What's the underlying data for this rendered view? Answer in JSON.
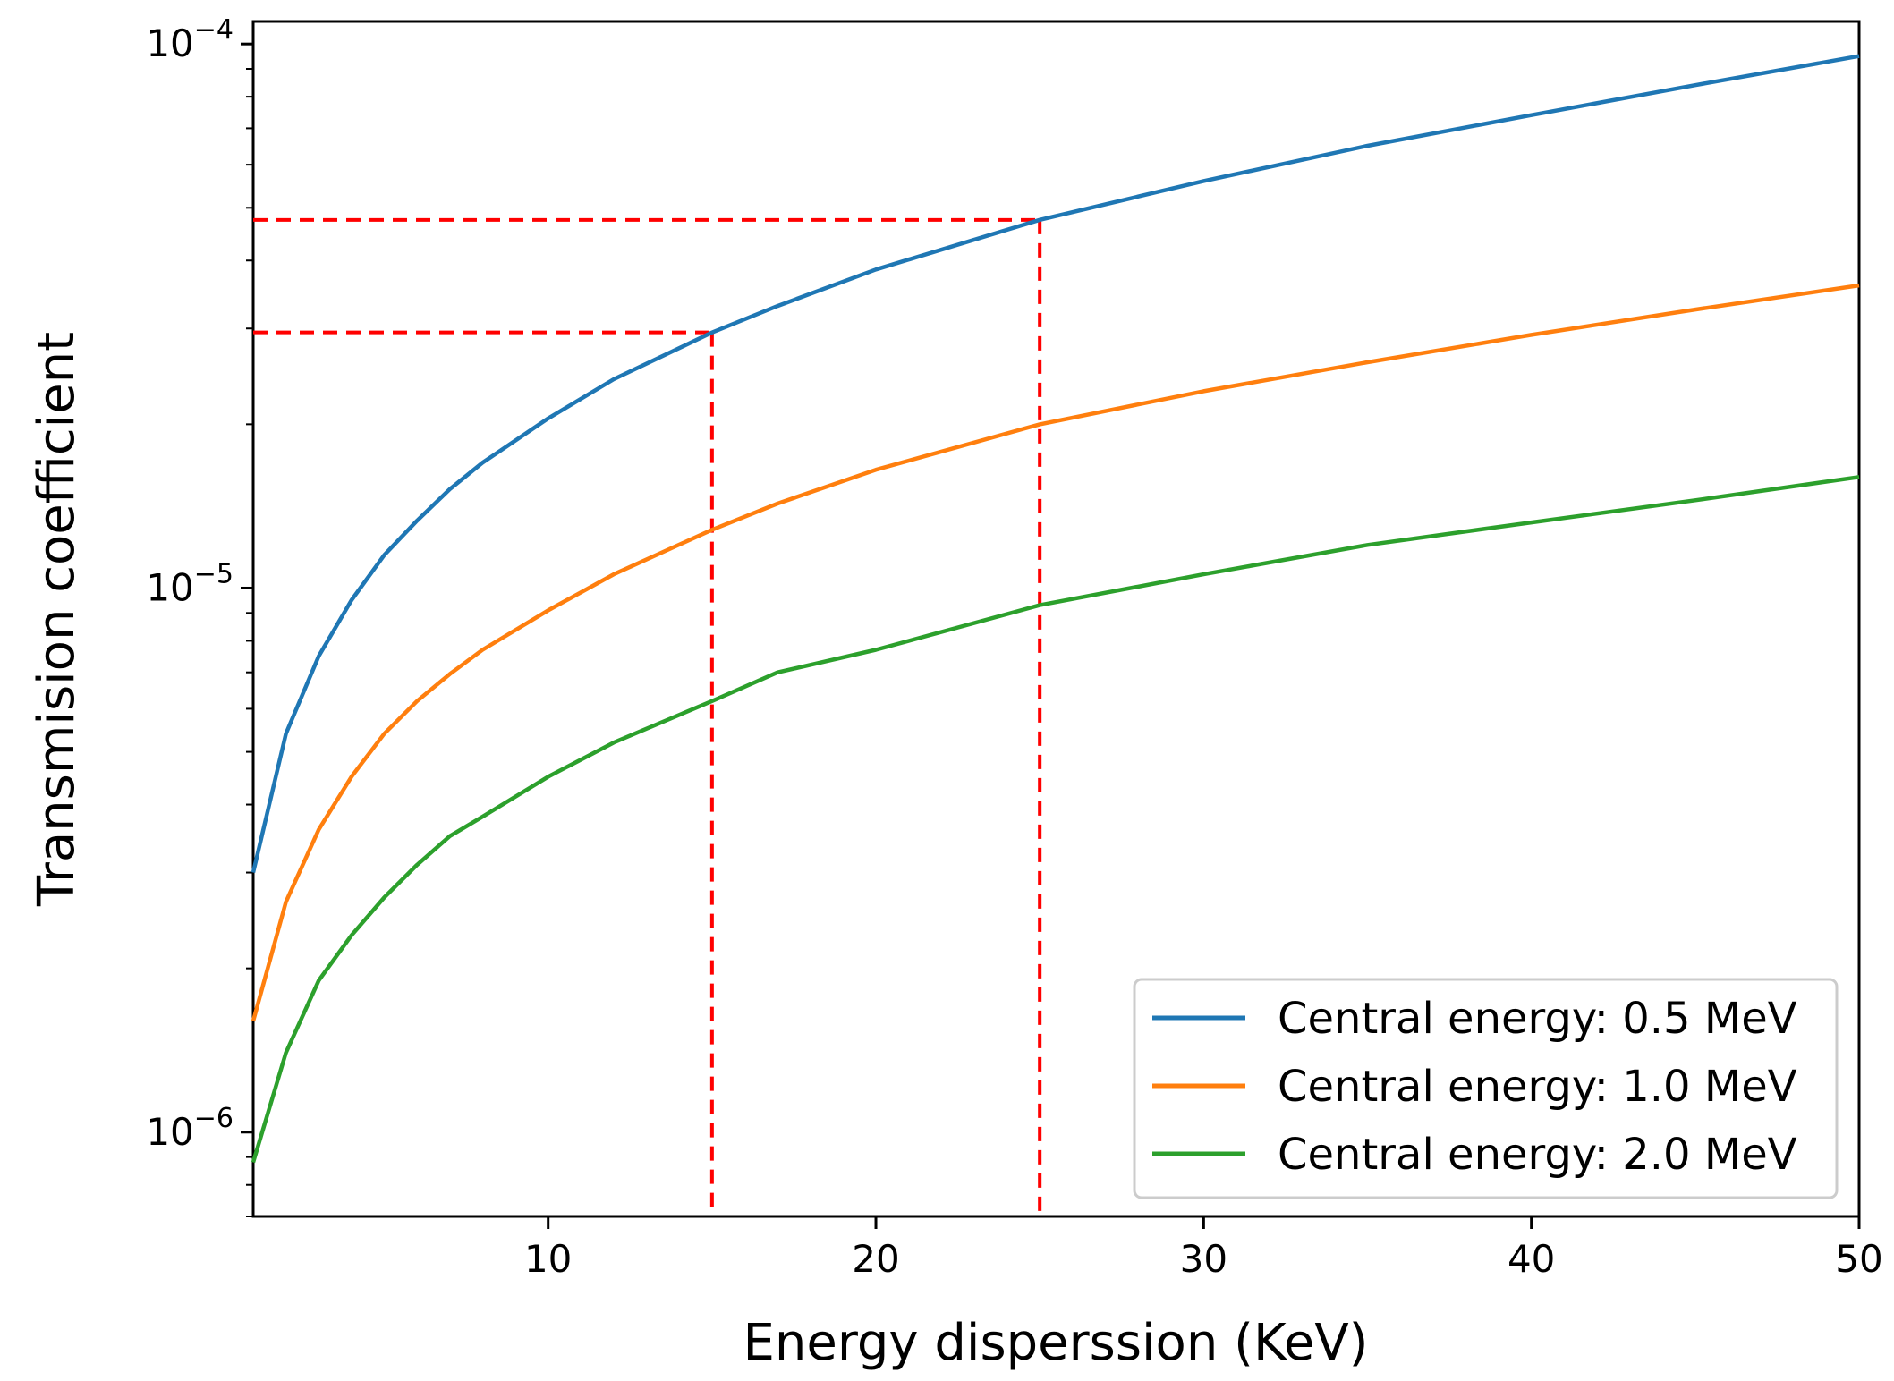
{
  "chart_data": {
    "type": "line",
    "xlabel": "Energy disperssion (KeV)",
    "ylabel": "Transmision coefficient",
    "xlim": [
      1,
      50
    ],
    "ylim": [
      7e-07,
      0.00011
    ],
    "yscale": "log",
    "legend_position": "bottom-right",
    "x_ticks": [
      10,
      20,
      30,
      40,
      50
    ],
    "y_ticks": [
      {
        "value": 1e-06,
        "base": "10",
        "exp": "−6"
      },
      {
        "value": 1e-05,
        "base": "10",
        "exp": "−5"
      },
      {
        "value": 0.0001,
        "base": "10",
        "exp": "−4"
      }
    ],
    "x": [
      1,
      2,
      3,
      4,
      5,
      6,
      7,
      8,
      10,
      12,
      15,
      17,
      20,
      25,
      30,
      35,
      40,
      45,
      50
    ],
    "series": [
      {
        "name": "Central energy: 0.5 MeV",
        "color": "#1f77b4",
        "values": [
          3e-06,
          5.4e-06,
          7.5e-06,
          9.5e-06,
          1.15e-05,
          1.33e-05,
          1.52e-05,
          1.7e-05,
          2.05e-05,
          2.42e-05,
          2.95e-05,
          3.3e-05,
          3.85e-05,
          4.75e-05,
          5.6e-05,
          6.5e-05,
          7.4e-05,
          8.4e-05,
          9.5e-05
        ]
      },
      {
        "name": "Central energy: 1.0 MeV",
        "color": "#ff7f0e",
        "values": [
          1.6e-06,
          2.65e-06,
          3.6e-06,
          4.5e-06,
          5.4e-06,
          6.2e-06,
          6.95e-06,
          7.7e-06,
          9.1e-06,
          1.06e-05,
          1.28e-05,
          1.43e-05,
          1.65e-05,
          2e-05,
          2.3e-05,
          2.6e-05,
          2.92e-05,
          3.25e-05,
          3.6e-05
        ]
      },
      {
        "name": "Central energy: 2.0 MeV",
        "color": "#2ca02c",
        "values": [
          8.8e-07,
          1.4e-06,
          1.9e-06,
          2.3e-06,
          2.7e-06,
          3.1e-06,
          3.5e-06,
          3.8e-06,
          4.5e-06,
          5.2e-06,
          6.2e-06,
          7e-06,
          7.7e-06,
          9.3e-06,
          1.06e-05,
          1.2e-05,
          1.32e-05,
          1.45e-05,
          1.6e-05
        ]
      }
    ],
    "reference_lines": [
      {
        "x": 15,
        "y": 2.95e-05,
        "color": "#ff0000",
        "style": "dashed"
      },
      {
        "x": 25,
        "y": 4.75e-05,
        "color": "#ff0000",
        "style": "dashed"
      }
    ]
  }
}
